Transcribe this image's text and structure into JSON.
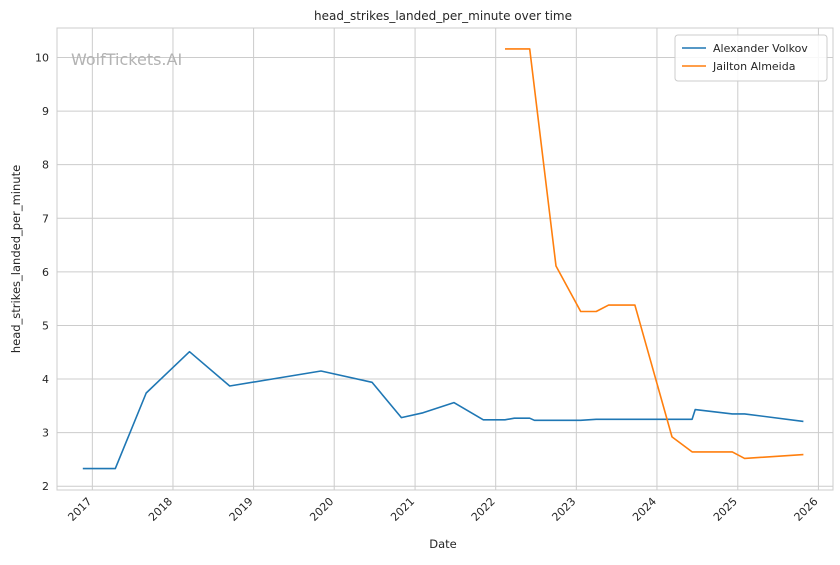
{
  "chart_data": {
    "type": "line",
    "title": "head_strikes_landed_per_minute over time",
    "xlabel": "Date",
    "ylabel": "head_strikes_landed_per_minute",
    "watermark": "WolfTickets.AI",
    "x_ticks": [
      "2017",
      "2018",
      "2019",
      "2020",
      "2021",
      "2022",
      "2023",
      "2024",
      "2025",
      "2026"
    ],
    "y_ticks": [
      2,
      3,
      4,
      5,
      6,
      7,
      8,
      9,
      10
    ],
    "xlim": [
      "2016-07-25",
      "2026-03-08"
    ],
    "ylim": [
      1.93,
      10.55
    ],
    "grid": true,
    "legend_position": "top-right",
    "series": [
      {
        "name": "Alexander Volkov",
        "color": "#1f77b4",
        "points": [
          {
            "x": "2016-11-19",
            "y": 2.33
          },
          {
            "x": "2017-04-15",
            "y": 2.33
          },
          {
            "x": "2017-09-02",
            "y": 3.74
          },
          {
            "x": "2018-03-17",
            "y": 4.51
          },
          {
            "x": "2018-09-15",
            "y": 3.87
          },
          {
            "x": "2019-11-02",
            "y": 4.15
          },
          {
            "x": "2020-06-20",
            "y": 3.94
          },
          {
            "x": "2020-10-31",
            "y": 3.28
          },
          {
            "x": "2021-02-06",
            "y": 3.37
          },
          {
            "x": "2021-06-26",
            "y": 3.56
          },
          {
            "x": "2021-11-06",
            "y": 3.24
          },
          {
            "x": "2022-02-12",
            "y": 3.24
          },
          {
            "x": "2022-03-26",
            "y": 3.27
          },
          {
            "x": "2022-06-04",
            "y": 3.27
          },
          {
            "x": "2022-06-25",
            "y": 3.23
          },
          {
            "x": "2023-01-21",
            "y": 3.23
          },
          {
            "x": "2023-04-01",
            "y": 3.25
          },
          {
            "x": "2023-10-21",
            "y": 3.25
          },
          {
            "x": "2024-06-08",
            "y": 3.25
          },
          {
            "x": "2024-06-22",
            "y": 3.43
          },
          {
            "x": "2024-12-07",
            "y": 3.35
          },
          {
            "x": "2025-02-01",
            "y": 3.35
          },
          {
            "x": "2025-10-25",
            "y": 3.21
          }
        ]
      },
      {
        "name": "Jailton Almeida",
        "color": "#ff7f0e",
        "points": [
          {
            "x": "2022-02-12",
            "y": 10.16
          },
          {
            "x": "2022-06-04",
            "y": 10.16
          },
          {
            "x": "2022-10-01",
            "y": 6.11
          },
          {
            "x": "2023-01-21",
            "y": 5.26
          },
          {
            "x": "2023-04-01",
            "y": 5.26
          },
          {
            "x": "2023-05-27",
            "y": 5.38
          },
          {
            "x": "2023-09-23",
            "y": 5.38
          },
          {
            "x": "2024-03-09",
            "y": 2.92
          },
          {
            "x": "2024-06-08",
            "y": 2.64
          },
          {
            "x": "2024-12-07",
            "y": 2.64
          },
          {
            "x": "2025-02-01",
            "y": 2.52
          },
          {
            "x": "2025-10-25",
            "y": 2.59
          }
        ]
      }
    ]
  }
}
